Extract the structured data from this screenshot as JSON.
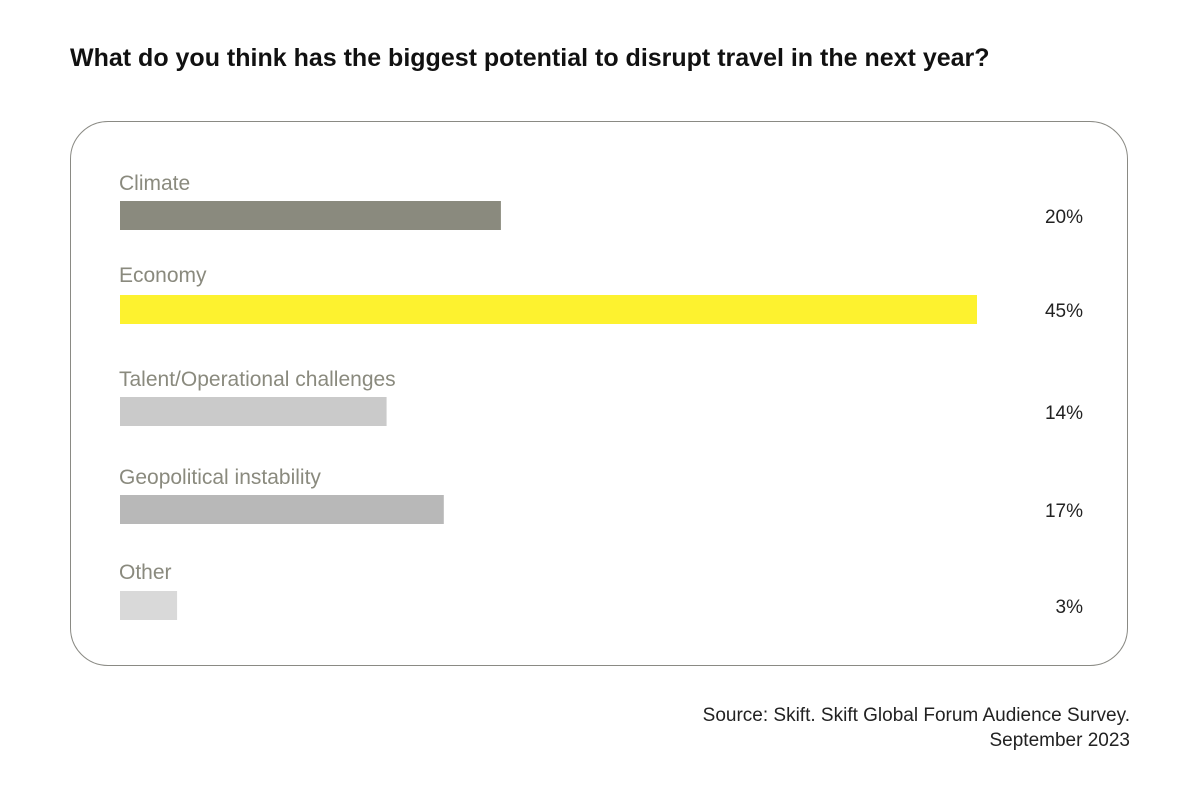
{
  "chart_data": {
    "type": "bar",
    "orientation": "horizontal",
    "title": "What do you think has the biggest potential to disrupt travel in the next year?",
    "categories": [
      "Climate",
      "Economy",
      "Talent/Operational challenges",
      "Geopolitical instability",
      "Other"
    ],
    "values": [
      20,
      45,
      14,
      17,
      3
    ],
    "value_labels": [
      "20%",
      "45%",
      "14%",
      "17%",
      "3%"
    ],
    "colors": [
      "#8a8a7e",
      "#fdf22f",
      "#cacaca",
      "#b8b8b8",
      "#d9d9d9"
    ],
    "label_color": "#8a8a7e",
    "value_label_color": "#222222",
    "unit": "%",
    "xlim": [
      0,
      45
    ],
    "grid": false,
    "legend": "none"
  },
  "source": {
    "line1": "Source: Skift. Skift Global Forum Audience Survey.",
    "line2": "September 2023"
  }
}
